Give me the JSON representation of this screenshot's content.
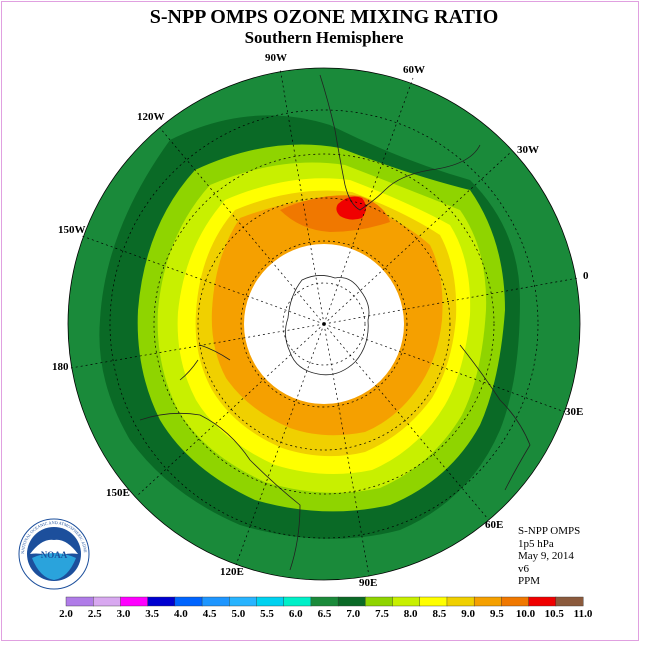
{
  "header": {
    "title": "S-NPP OMPS OZONE MIXING RATIO",
    "subtitle": "Southern Hemisphere"
  },
  "map": {
    "projection": "south-polar-stereographic",
    "meridian_labels": [
      "90W",
      "60W",
      "30W",
      "0",
      "30E",
      "60E",
      "90E",
      "120E",
      "150E",
      "180",
      "150W",
      "120W"
    ],
    "data_missing_region": "polar cap (no data)",
    "colors": {
      "outer": "#1a8a3a",
      "dark_band": "#0a6a26",
      "lime": "#8fd400",
      "yellow_green": "#c8f000",
      "yellow": "#ffff00",
      "gold": "#f0d000",
      "orange": "#f5a000",
      "dark_orange": "#f07800",
      "red": "#f00000",
      "missing": "#ffffff"
    },
    "contour_levels_ppm": {
      "outer_region": "6.0 - 6.5",
      "dark_band": "6.5 - 7.0",
      "lime_band": "7.0 - 7.5",
      "yellow_green_band": "7.5 - 8.0",
      "yellow_band": "8.0 - 8.5",
      "gold_band": "8.5 - 9.0",
      "orange_region": "9.0 - 9.5",
      "max_region_near_south_america": "10.0 - 10.5"
    }
  },
  "info": {
    "product": "S-NPP OMPS",
    "level": "1p5 hPa",
    "date": "May 9, 2014",
    "version": "v6",
    "units": "PPM"
  },
  "logo": {
    "text": "NOAA",
    "ring_text": "NATIONAL OCEANIC AND ATMOSPHERIC ADMINISTRATION · U.S. DEPARTMENT OF COMMERCE"
  },
  "colorbar": {
    "labels": [
      "2.0",
      "2.5",
      "3.0",
      "3.5",
      "4.0",
      "4.5",
      "5.0",
      "5.5",
      "6.0",
      "6.5",
      "7.0",
      "7.5",
      "8.0",
      "8.5",
      "9.0",
      "9.5",
      "10.0",
      "10.5",
      "11.0"
    ],
    "colors": [
      "#b07ce8",
      "#d8a8f0",
      "#ff00ff",
      "#0000d0",
      "#0064ff",
      "#1e96ff",
      "#28b4ff",
      "#00d2f0",
      "#00f0c8",
      "#1a8a3a",
      "#0a6a26",
      "#8fd400",
      "#c8f000",
      "#ffff00",
      "#f0d000",
      "#f5a000",
      "#f07800",
      "#f00000",
      "#8b5a3c"
    ]
  }
}
